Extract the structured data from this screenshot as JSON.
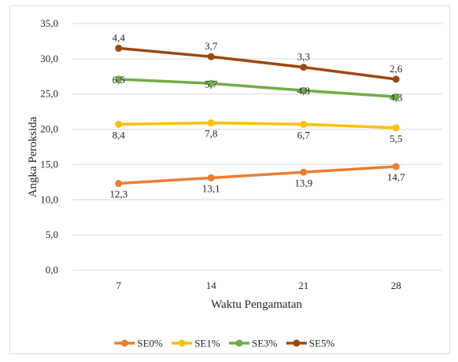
{
  "chart_data": {
    "type": "line",
    "title": "",
    "xlabel": "Waktu Pengamatan",
    "ylabel": "Angka Peroksida",
    "x": [
      "7",
      "14",
      "21",
      "28"
    ],
    "ylim": [
      0,
      35
    ],
    "ytick_labels": [
      "0,0",
      "5,0",
      "10,0",
      "15,0",
      "20,0",
      "25,0",
      "30,0",
      "35,0"
    ],
    "grid": true,
    "legend_position": "bottom",
    "series": [
      {
        "name": "SE0%",
        "color": "#ed7d31",
        "values": [
          12.3,
          13.1,
          13.9,
          14.7
        ],
        "data_labels": [
          "12,3",
          "13,1",
          "13,9",
          "14,7"
        ],
        "label_pos": "below"
      },
      {
        "name": "SE1%",
        "color": "#ffc000",
        "values": [
          20.7,
          20.9,
          20.7,
          20.2
        ],
        "data_labels": [
          "8,4",
          "7,8",
          "6,7",
          "5,5"
        ],
        "label_pos": "below"
      },
      {
        "name": "SE3%",
        "color": "#70ad47",
        "values": [
          27.1,
          26.5,
          25.5,
          24.6
        ],
        "data_labels": [
          "6,5",
          "5,7",
          "4,8",
          "4,3"
        ],
        "label_pos": "on"
      },
      {
        "name": "SE5%",
        "color": "#9e480e",
        "values": [
          31.5,
          30.3,
          28.8,
          27.1
        ],
        "data_labels": [
          "4,4",
          "3,7",
          "3,3",
          "2,6"
        ],
        "label_pos": "above"
      }
    ]
  }
}
